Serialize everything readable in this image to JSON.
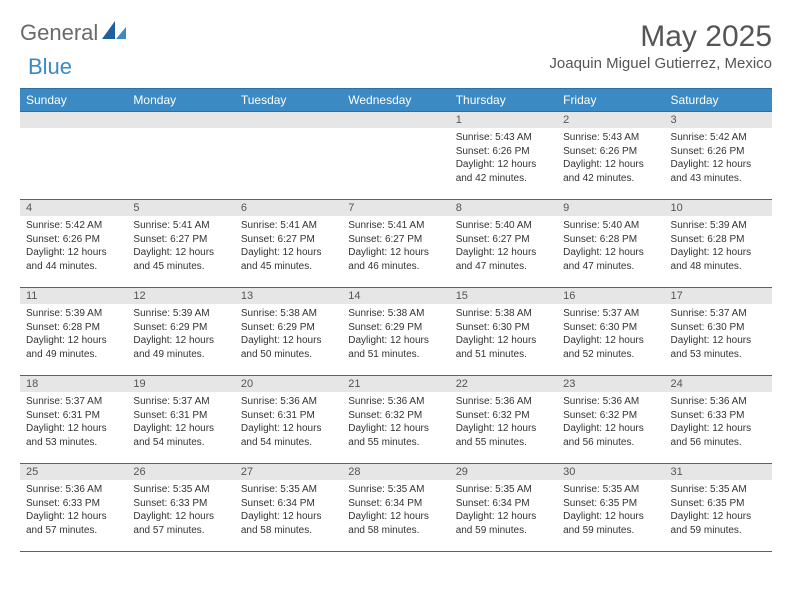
{
  "brand": {
    "text1": "General",
    "text2": "Blue"
  },
  "title": "May 2025",
  "location": "Joaquin Miguel Gutierrez, Mexico",
  "colors": {
    "header_bg": "#3b8ac4",
    "header_text": "#ffffff",
    "rule": "#2f6fa0",
    "daynum_bg": "#e6e6e6",
    "brand_gray": "#6a6a6a",
    "brand_blue": "#3b8ac4"
  },
  "dayNames": [
    "Sunday",
    "Monday",
    "Tuesday",
    "Wednesday",
    "Thursday",
    "Friday",
    "Saturday"
  ],
  "weeks": [
    [
      null,
      null,
      null,
      null,
      {
        "n": "1",
        "sr": "Sunrise: 5:43 AM",
        "ss": "Sunset: 6:26 PM",
        "d1": "Daylight: 12 hours",
        "d2": "and 42 minutes."
      },
      {
        "n": "2",
        "sr": "Sunrise: 5:43 AM",
        "ss": "Sunset: 6:26 PM",
        "d1": "Daylight: 12 hours",
        "d2": "and 42 minutes."
      },
      {
        "n": "3",
        "sr": "Sunrise: 5:42 AM",
        "ss": "Sunset: 6:26 PM",
        "d1": "Daylight: 12 hours",
        "d2": "and 43 minutes."
      }
    ],
    [
      {
        "n": "4",
        "sr": "Sunrise: 5:42 AM",
        "ss": "Sunset: 6:26 PM",
        "d1": "Daylight: 12 hours",
        "d2": "and 44 minutes."
      },
      {
        "n": "5",
        "sr": "Sunrise: 5:41 AM",
        "ss": "Sunset: 6:27 PM",
        "d1": "Daylight: 12 hours",
        "d2": "and 45 minutes."
      },
      {
        "n": "6",
        "sr": "Sunrise: 5:41 AM",
        "ss": "Sunset: 6:27 PM",
        "d1": "Daylight: 12 hours",
        "d2": "and 45 minutes."
      },
      {
        "n": "7",
        "sr": "Sunrise: 5:41 AM",
        "ss": "Sunset: 6:27 PM",
        "d1": "Daylight: 12 hours",
        "d2": "and 46 minutes."
      },
      {
        "n": "8",
        "sr": "Sunrise: 5:40 AM",
        "ss": "Sunset: 6:27 PM",
        "d1": "Daylight: 12 hours",
        "d2": "and 47 minutes."
      },
      {
        "n": "9",
        "sr": "Sunrise: 5:40 AM",
        "ss": "Sunset: 6:28 PM",
        "d1": "Daylight: 12 hours",
        "d2": "and 47 minutes."
      },
      {
        "n": "10",
        "sr": "Sunrise: 5:39 AM",
        "ss": "Sunset: 6:28 PM",
        "d1": "Daylight: 12 hours",
        "d2": "and 48 minutes."
      }
    ],
    [
      {
        "n": "11",
        "sr": "Sunrise: 5:39 AM",
        "ss": "Sunset: 6:28 PM",
        "d1": "Daylight: 12 hours",
        "d2": "and 49 minutes."
      },
      {
        "n": "12",
        "sr": "Sunrise: 5:39 AM",
        "ss": "Sunset: 6:29 PM",
        "d1": "Daylight: 12 hours",
        "d2": "and 49 minutes."
      },
      {
        "n": "13",
        "sr": "Sunrise: 5:38 AM",
        "ss": "Sunset: 6:29 PM",
        "d1": "Daylight: 12 hours",
        "d2": "and 50 minutes."
      },
      {
        "n": "14",
        "sr": "Sunrise: 5:38 AM",
        "ss": "Sunset: 6:29 PM",
        "d1": "Daylight: 12 hours",
        "d2": "and 51 minutes."
      },
      {
        "n": "15",
        "sr": "Sunrise: 5:38 AM",
        "ss": "Sunset: 6:30 PM",
        "d1": "Daylight: 12 hours",
        "d2": "and 51 minutes."
      },
      {
        "n": "16",
        "sr": "Sunrise: 5:37 AM",
        "ss": "Sunset: 6:30 PM",
        "d1": "Daylight: 12 hours",
        "d2": "and 52 minutes."
      },
      {
        "n": "17",
        "sr": "Sunrise: 5:37 AM",
        "ss": "Sunset: 6:30 PM",
        "d1": "Daylight: 12 hours",
        "d2": "and 53 minutes."
      }
    ],
    [
      {
        "n": "18",
        "sr": "Sunrise: 5:37 AM",
        "ss": "Sunset: 6:31 PM",
        "d1": "Daylight: 12 hours",
        "d2": "and 53 minutes."
      },
      {
        "n": "19",
        "sr": "Sunrise: 5:37 AM",
        "ss": "Sunset: 6:31 PM",
        "d1": "Daylight: 12 hours",
        "d2": "and 54 minutes."
      },
      {
        "n": "20",
        "sr": "Sunrise: 5:36 AM",
        "ss": "Sunset: 6:31 PM",
        "d1": "Daylight: 12 hours",
        "d2": "and 54 minutes."
      },
      {
        "n": "21",
        "sr": "Sunrise: 5:36 AM",
        "ss": "Sunset: 6:32 PM",
        "d1": "Daylight: 12 hours",
        "d2": "and 55 minutes."
      },
      {
        "n": "22",
        "sr": "Sunrise: 5:36 AM",
        "ss": "Sunset: 6:32 PM",
        "d1": "Daylight: 12 hours",
        "d2": "and 55 minutes."
      },
      {
        "n": "23",
        "sr": "Sunrise: 5:36 AM",
        "ss": "Sunset: 6:32 PM",
        "d1": "Daylight: 12 hours",
        "d2": "and 56 minutes."
      },
      {
        "n": "24",
        "sr": "Sunrise: 5:36 AM",
        "ss": "Sunset: 6:33 PM",
        "d1": "Daylight: 12 hours",
        "d2": "and 56 minutes."
      }
    ],
    [
      {
        "n": "25",
        "sr": "Sunrise: 5:36 AM",
        "ss": "Sunset: 6:33 PM",
        "d1": "Daylight: 12 hours",
        "d2": "and 57 minutes."
      },
      {
        "n": "26",
        "sr": "Sunrise: 5:35 AM",
        "ss": "Sunset: 6:33 PM",
        "d1": "Daylight: 12 hours",
        "d2": "and 57 minutes."
      },
      {
        "n": "27",
        "sr": "Sunrise: 5:35 AM",
        "ss": "Sunset: 6:34 PM",
        "d1": "Daylight: 12 hours",
        "d2": "and 58 minutes."
      },
      {
        "n": "28",
        "sr": "Sunrise: 5:35 AM",
        "ss": "Sunset: 6:34 PM",
        "d1": "Daylight: 12 hours",
        "d2": "and 58 minutes."
      },
      {
        "n": "29",
        "sr": "Sunrise: 5:35 AM",
        "ss": "Sunset: 6:34 PM",
        "d1": "Daylight: 12 hours",
        "d2": "and 59 minutes."
      },
      {
        "n": "30",
        "sr": "Sunrise: 5:35 AM",
        "ss": "Sunset: 6:35 PM",
        "d1": "Daylight: 12 hours",
        "d2": "and 59 minutes."
      },
      {
        "n": "31",
        "sr": "Sunrise: 5:35 AM",
        "ss": "Sunset: 6:35 PM",
        "d1": "Daylight: 12 hours",
        "d2": "and 59 minutes."
      }
    ]
  ]
}
